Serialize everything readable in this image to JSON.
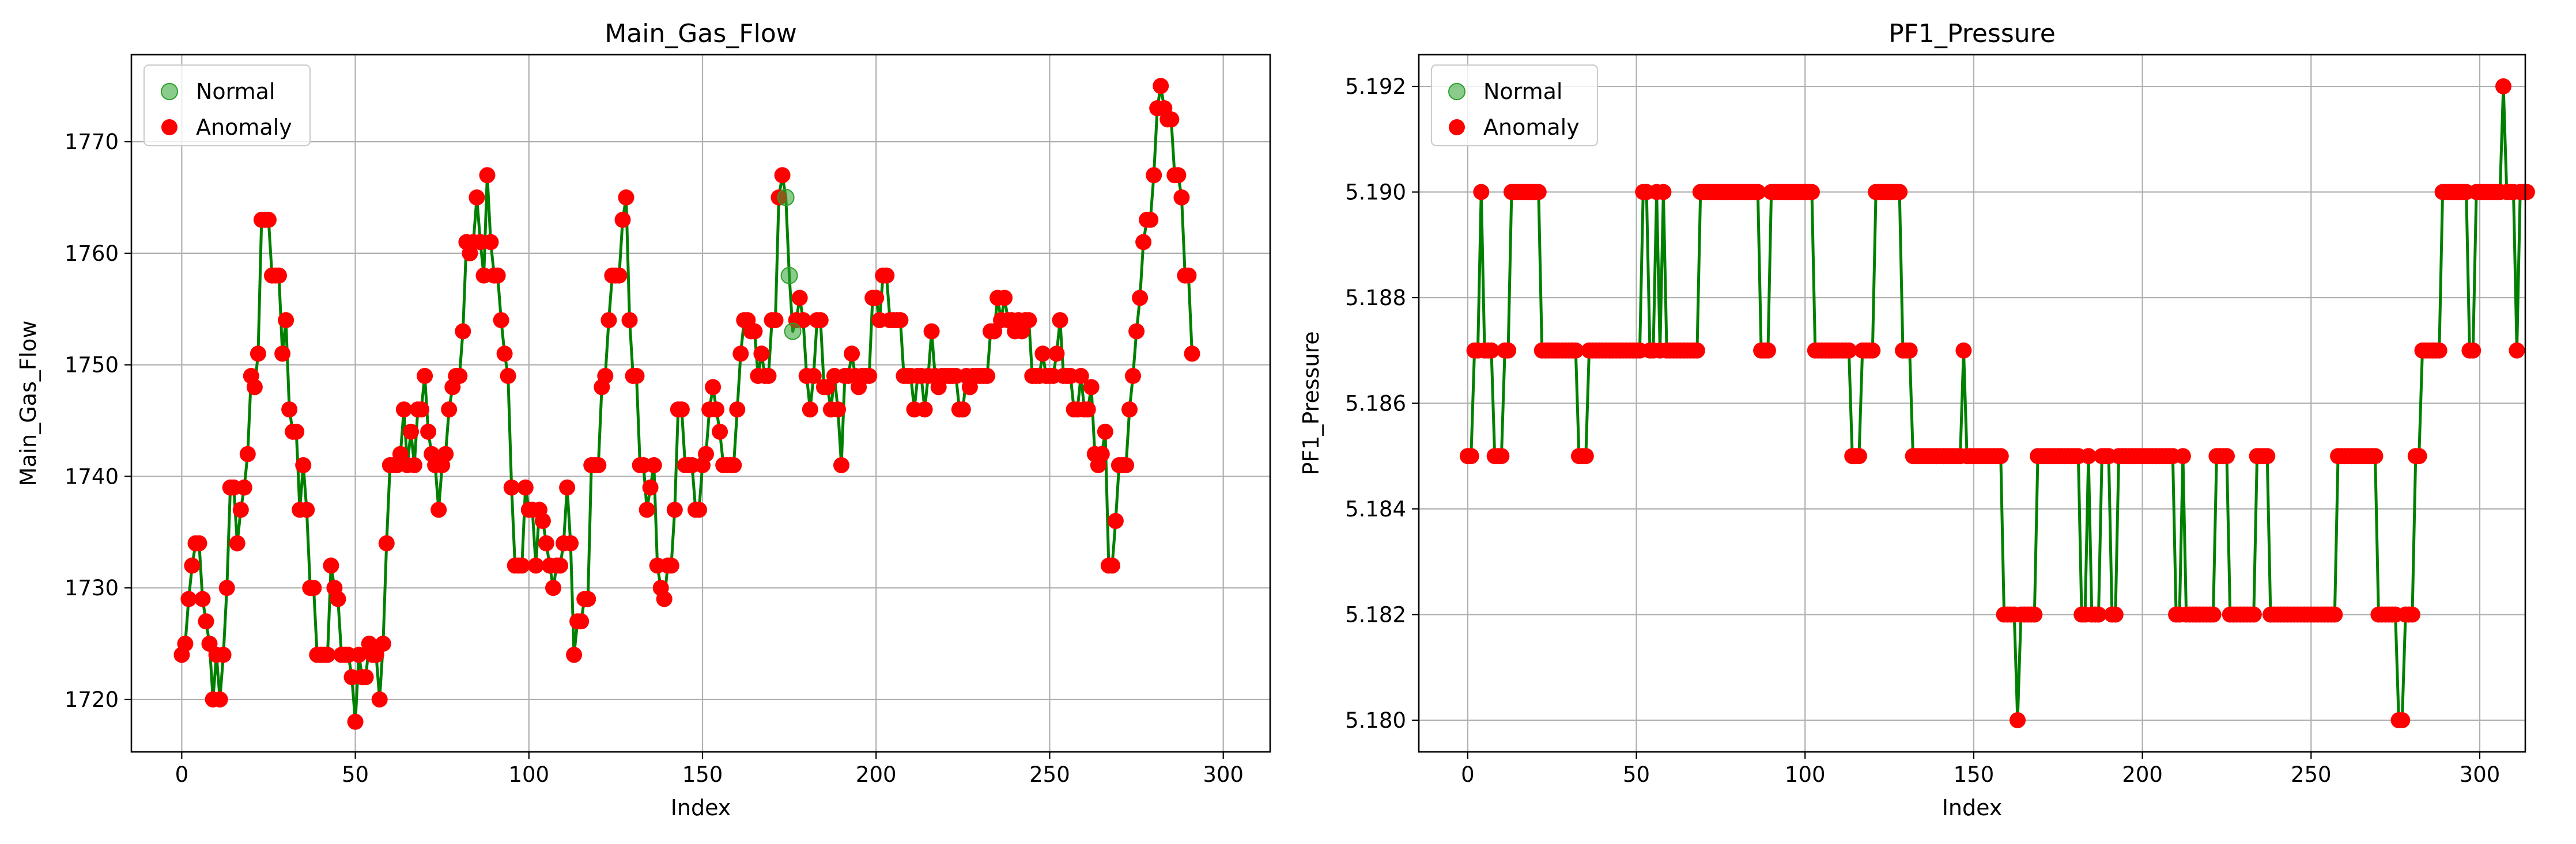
{
  "chart_data": [
    {
      "type": "line",
      "title": "Main_Gas_Flow",
      "xlabel": "Index",
      "ylabel": "Main_Gas_Flow",
      "xlim": [
        -14.5,
        313.5
      ],
      "ylim": [
        1715.3,
        1777.8
      ],
      "xticks": [
        0,
        50,
        100,
        150,
        200,
        250,
        300
      ],
      "yticks": [
        1720,
        1730,
        1740,
        1750,
        1760,
        1770
      ],
      "grid": true,
      "legend_position": "top-left",
      "legend": [
        "Normal",
        "Anomaly"
      ],
      "colors": {
        "line": "#008000",
        "normal": "#2ca02c",
        "anomaly": "#ff0000"
      },
      "normal_indices": [
        174,
        175,
        176
      ],
      "values": [
        1724,
        1725,
        1729,
        1732,
        1734,
        1734,
        1729,
        1727,
        1725,
        1720,
        1724,
        1720,
        1724,
        1730,
        1739,
        1739,
        1734,
        1737,
        1739,
        1742,
        1749,
        1748,
        1751,
        1763,
        1763,
        1763,
        1758,
        1758,
        1758,
        1751,
        1754,
        1746,
        1744,
        1744,
        1737,
        1741,
        1737,
        1730,
        1730,
        1724,
        1724,
        1724,
        1724,
        1732,
        1730,
        1729,
        1724,
        1724,
        1724,
        1722,
        1718,
        1724,
        1722,
        1722,
        1725,
        1724,
        1724,
        1720,
        1725,
        1734,
        1741,
        1741,
        1741,
        1742,
        1746,
        1741,
        1744,
        1741,
        1746,
        1746,
        1749,
        1744,
        1742,
        1741,
        1737,
        1741,
        1742,
        1746,
        1748,
        1749,
        1749,
        1753,
        1761,
        1760,
        1761,
        1765,
        1761,
        1758,
        1767,
        1761,
        1758,
        1758,
        1754,
        1751,
        1749,
        1739,
        1732,
        1732,
        1732,
        1739,
        1737,
        1737,
        1732,
        1737,
        1736,
        1734,
        1732,
        1730,
        1732,
        1732,
        1734,
        1739,
        1734,
        1724,
        1727,
        1727,
        1729,
        1729,
        1741,
        1741,
        1741,
        1748,
        1749,
        1754,
        1758,
        1758,
        1758,
        1763,
        1765,
        1754,
        1749,
        1749,
        1741,
        1741,
        1737,
        1739,
        1741,
        1732,
        1730,
        1729,
        1732,
        1732,
        1737,
        1746,
        1746,
        1741,
        1741,
        1741,
        1737,
        1737,
        1741,
        1742,
        1746,
        1748,
        1746,
        1744,
        1741,
        1741,
        1741,
        1741,
        1746,
        1751,
        1754,
        1754,
        1753,
        1753,
        1749,
        1751,
        1749,
        1749,
        1754,
        1754,
        1765,
        1767,
        1765,
        1758,
        1753,
        1754,
        1756,
        1754,
        1749,
        1746,
        1749,
        1754,
        1754,
        1748,
        1748,
        1746,
        1749,
        1746,
        1741,
        1749,
        1749,
        1751,
        1749,
        1748,
        1749,
        1749,
        1749,
        1756,
        1756,
        1754,
        1758,
        1758,
        1754,
        1754,
        1754,
        1754,
        1749,
        1749,
        1749,
        1746,
        1749,
        1749,
        1746,
        1749,
        1753,
        1749,
        1748,
        1749,
        1749,
        1749,
        1749,
        1749,
        1746,
        1746,
        1749,
        1748,
        1749,
        1749,
        1749,
        1749,
        1749,
        1753,
        1753,
        1756,
        1754,
        1756,
        1754,
        1754,
        1753,
        1754,
        1753,
        1754,
        1754,
        1749,
        1749,
        1749,
        1751,
        1749,
        1749,
        1749,
        1751,
        1754,
        1749,
        1749,
        1749,
        1746,
        1746,
        1749,
        1746,
        1746,
        1748,
        1742,
        1741,
        1742,
        1744,
        1732,
        1732,
        1736,
        1741,
        1741,
        1741,
        1746,
        1749,
        1753,
        1756,
        1761,
        1763,
        1763,
        1767,
        1773,
        1775,
        1773,
        1772,
        1772,
        1767,
        1767,
        1765,
        1758,
        1758,
        1751
      ]
    },
    {
      "type": "line",
      "title": "PF1_Pressure",
      "xlabel": "Index",
      "ylabel": "PF1_Pressure",
      "xlim": [
        -14.5,
        313.5
      ],
      "ylim": [
        5.1794,
        5.1926
      ],
      "xticks": [
        0,
        50,
        100,
        150,
        200,
        250,
        300
      ],
      "yticks": [
        5.18,
        5.182,
        5.184,
        5.186,
        5.188,
        5.19,
        5.192
      ],
      "ytick_labels": [
        "5.180",
        "5.182",
        "5.184",
        "5.186",
        "5.188",
        "5.190",
        "5.192"
      ],
      "grid": true,
      "legend_position": "top-left",
      "legend": [
        "Normal",
        "Anomaly"
      ],
      "colors": {
        "line": "#008000",
        "normal": "#2ca02c",
        "anomaly": "#ff0000"
      },
      "normal_indices": [],
      "values": [
        5.185,
        5.185,
        5.187,
        5.187,
        5.19,
        5.187,
        5.187,
        5.187,
        5.185,
        5.185,
        5.185,
        5.187,
        5.187,
        5.19,
        5.19,
        5.19,
        5.19,
        5.19,
        5.19,
        5.19,
        5.19,
        5.19,
        5.187,
        5.187,
        5.187,
        5.187,
        5.187,
        5.187,
        5.187,
        5.187,
        5.187,
        5.187,
        5.187,
        5.185,
        5.185,
        5.185,
        5.187,
        5.187,
        5.187,
        5.187,
        5.187,
        5.187,
        5.187,
        5.187,
        5.187,
        5.187,
        5.187,
        5.187,
        5.187,
        5.187,
        5.187,
        5.187,
        5.19,
        5.19,
        5.187,
        5.187,
        5.19,
        5.187,
        5.19,
        5.187,
        5.187,
        5.187,
        5.187,
        5.187,
        5.187,
        5.187,
        5.187,
        5.187,
        5.187,
        5.19,
        5.19,
        5.19,
        5.19,
        5.19,
        5.19,
        5.19,
        5.19,
        5.19,
        5.19,
        5.19,
        5.19,
        5.19,
        5.19,
        5.19,
        5.19,
        5.19,
        5.19,
        5.187,
        5.187,
        5.187,
        5.19,
        5.19,
        5.19,
        5.19,
        5.19,
        5.19,
        5.19,
        5.19,
        5.19,
        5.19,
        5.19,
        5.19,
        5.19,
        5.187,
        5.187,
        5.187,
        5.187,
        5.187,
        5.187,
        5.187,
        5.187,
        5.187,
        5.187,
        5.187,
        5.185,
        5.185,
        5.185,
        5.187,
        5.187,
        5.187,
        5.187,
        5.19,
        5.19,
        5.19,
        5.19,
        5.19,
        5.19,
        5.19,
        5.19,
        5.187,
        5.187,
        5.187,
        5.185,
        5.185,
        5.185,
        5.185,
        5.185,
        5.185,
        5.185,
        5.185,
        5.185,
        5.185,
        5.185,
        5.185,
        5.185,
        5.185,
        5.185,
        5.187,
        5.185,
        5.185,
        5.185,
        5.185,
        5.185,
        5.185,
        5.185,
        5.185,
        5.185,
        5.185,
        5.185,
        5.182,
        5.182,
        5.182,
        5.182,
        5.18,
        5.182,
        5.182,
        5.182,
        5.182,
        5.182,
        5.185,
        5.185,
        5.185,
        5.185,
        5.185,
        5.185,
        5.185,
        5.185,
        5.185,
        5.185,
        5.185,
        5.185,
        5.185,
        5.182,
        5.182,
        5.185,
        5.182,
        5.182,
        5.182,
        5.185,
        5.185,
        5.185,
        5.182,
        5.182,
        5.185,
        5.185,
        5.185,
        5.185,
        5.185,
        5.185,
        5.185,
        5.185,
        5.185,
        5.185,
        5.185,
        5.185,
        5.185,
        5.185,
        5.185,
        5.185,
        5.185,
        5.182,
        5.182,
        5.185,
        5.182,
        5.182,
        5.182,
        5.182,
        5.182,
        5.182,
        5.182,
        5.182,
        5.182,
        5.185,
        5.185,
        5.185,
        5.185,
        5.182,
        5.182,
        5.182,
        5.182,
        5.182,
        5.182,
        5.182,
        5.182,
        5.185,
        5.185,
        5.185,
        5.185,
        5.182,
        5.182,
        5.182,
        5.182,
        5.182,
        5.182,
        5.182,
        5.182,
        5.182,
        5.182,
        5.182,
        5.182,
        5.182,
        5.182,
        5.182,
        5.182,
        5.182,
        5.182,
        5.182,
        5.182,
        5.185,
        5.185,
        5.185,
        5.185,
        5.185,
        5.185,
        5.185,
        5.185,
        5.185,
        5.185,
        5.185,
        5.185,
        5.182,
        5.182,
        5.182,
        5.182,
        5.182,
        5.182,
        5.18,
        5.18,
        5.182,
        5.182,
        5.182,
        5.185,
        5.185,
        5.187,
        5.187,
        5.187,
        5.187,
        5.187,
        5.187,
        5.19,
        5.19,
        5.19,
        5.19,
        5.19,
        5.19,
        5.19,
        5.19,
        5.187,
        5.187,
        5.19,
        5.19,
        5.19,
        5.19,
        5.19,
        5.19,
        5.19,
        5.19,
        5.192,
        5.19,
        5.19,
        5.19,
        5.187,
        5.19,
        5.19,
        5.19
      ]
    }
  ]
}
